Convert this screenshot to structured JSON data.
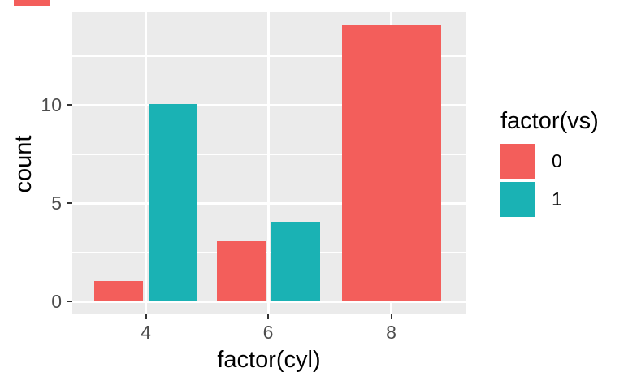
{
  "figure": {
    "background": "#FFFFFF",
    "panel_background": "#EBEBEB",
    "grid_color": "#FFFFFF",
    "tick_mark_color": "#333333",
    "tick_label_color": "#4D4D4D",
    "title_color": "#000000"
  },
  "chart_data": {
    "type": "bar",
    "bar_mode": "dodge",
    "title": "",
    "xlabel": "factor(cyl)",
    "ylabel": "count",
    "categories": [
      "4",
      "6",
      "8"
    ],
    "series": [
      {
        "name": "0",
        "color": "#F35E5B",
        "values": [
          1,
          3,
          14
        ]
      },
      {
        "name": "1",
        "color": "#1AB2B4",
        "values": [
          10,
          4,
          0
        ]
      }
    ],
    "y_ticks": [
      0,
      5,
      10
    ],
    "y_minor_ticks": [
      2.5,
      7.5,
      12.5
    ],
    "ylim": [
      -0.6,
      14.7
    ],
    "grid": "on",
    "legend_position": "right",
    "legend_title": "factor(vs)"
  },
  "legend": {
    "title": "factor(vs)",
    "items": [
      {
        "label": "0",
        "color": "#F35E5B"
      },
      {
        "label": "1",
        "color": "#1AB2B4"
      }
    ]
  },
  "decoration": {
    "clipped_mark_color": "#F35E5B"
  }
}
